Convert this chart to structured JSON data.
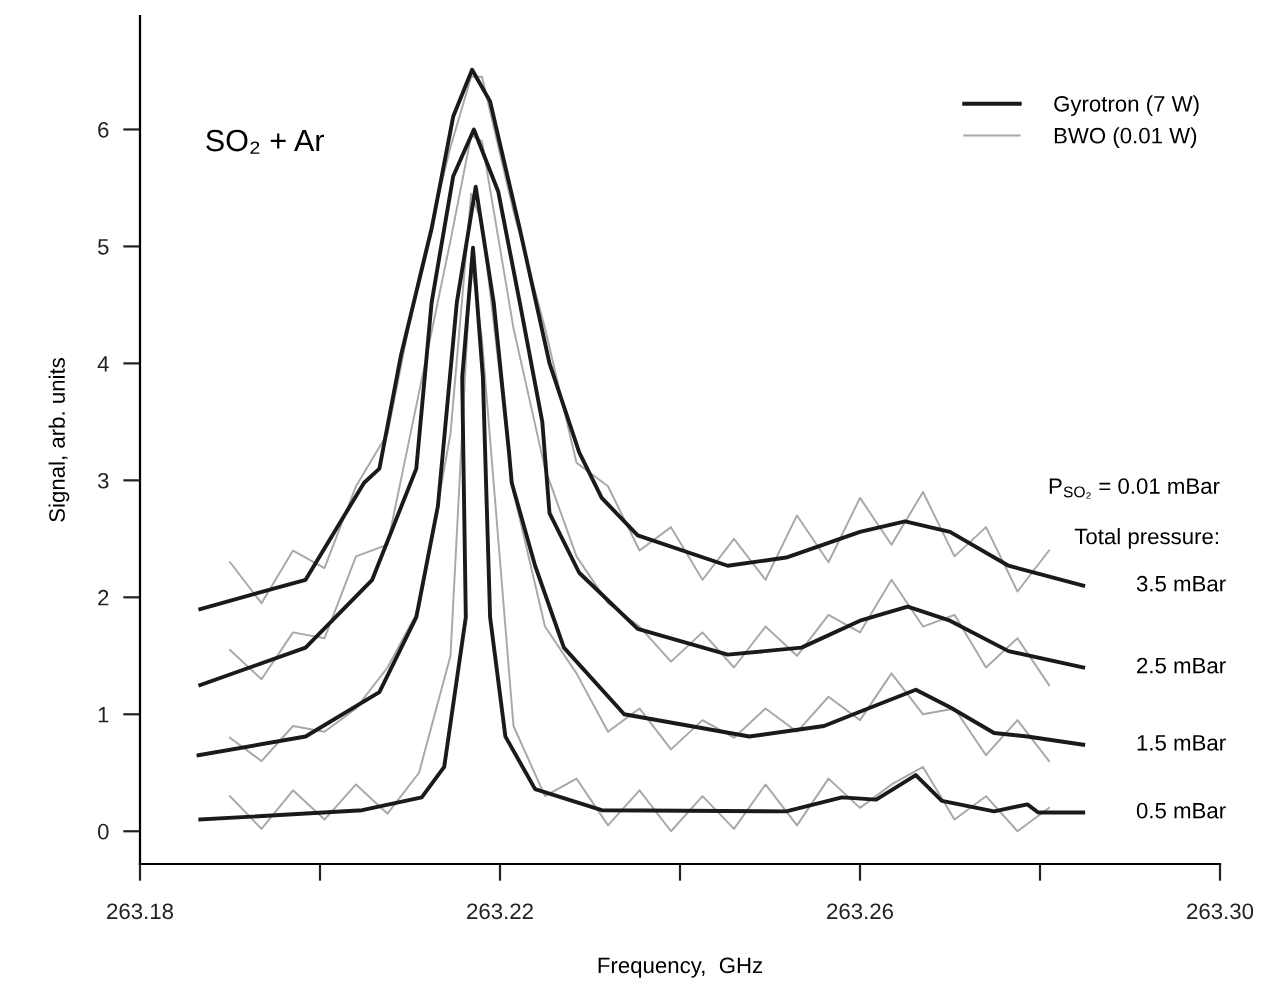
{
  "chart_data": {
    "type": "line",
    "xlabel": "Frequency,  GHz",
    "ylabel": "Signal, arb. units",
    "xlim": [
      263.18,
      263.3
    ],
    "ylim": [
      -0.28,
      6.97
    ],
    "xticks": [
      {
        "value": 263.18,
        "label": "263.18"
      },
      {
        "value": 263.2,
        "label": null
      },
      {
        "value": 263.22,
        "label": "263.22"
      },
      {
        "value": 263.24,
        "label": null
      },
      {
        "value": 263.26,
        "label": "263.26"
      },
      {
        "value": 263.28,
        "label": null
      },
      {
        "value": 263.3,
        "label": "263.30"
      }
    ],
    "yticks": [
      0,
      1,
      2,
      3,
      4,
      5,
      6
    ],
    "grid": false,
    "legend": "top right",
    "line_style": "solid",
    "marker": "none",
    "series": [
      {
        "name": "Gyrotron (7 W)",
        "color": "#1a1a1a",
        "x": [
          263.1867,
          263.1984,
          263.2049,
          263.2066,
          263.209,
          263.2124,
          263.2148,
          263.2169,
          263.2189,
          263.2222,
          263.2255,
          263.2288,
          263.2313,
          263.2353,
          263.2453,
          263.2518,
          263.26,
          263.265,
          263.27,
          263.2765,
          263.2848
        ],
        "values": [
          1.9,
          2.15,
          2.98,
          3.1,
          4.07,
          5.15,
          6.11,
          6.51,
          6.24,
          5.15,
          4.0,
          3.24,
          2.85,
          2.53,
          2.27,
          2.34,
          2.56,
          2.65,
          2.56,
          2.27,
          2.1
        ]
      },
      {
        "color": "#1a1a1a",
        "x": [
          263.1867,
          263.1984,
          263.2058,
          263.2107,
          263.2124,
          263.2148,
          263.2171,
          263.2198,
          263.2222,
          263.2247,
          263.2255,
          263.2288,
          263.2353,
          263.2453,
          263.2535,
          263.26,
          263.2653,
          263.27,
          263.2765,
          263.2848
        ],
        "values": [
          1.25,
          1.57,
          2.15,
          3.1,
          4.52,
          5.6,
          6.0,
          5.47,
          4.52,
          3.5,
          2.72,
          2.21,
          1.73,
          1.51,
          1.57,
          1.8,
          1.92,
          1.8,
          1.54,
          1.4
        ]
      },
      {
        "color": "#1a1a1a",
        "x": [
          263.1865,
          263.1984,
          263.2066,
          263.2107,
          263.2131,
          263.2152,
          263.2173,
          263.2193,
          263.221,
          263.2213,
          263.2239,
          263.2271,
          263.2338,
          263.2477,
          263.256,
          263.2609,
          263.2662,
          263.27,
          263.2749,
          263.2786,
          263.2848
        ],
        "values": [
          0.65,
          0.81,
          1.19,
          1.83,
          2.78,
          4.52,
          5.51,
          4.52,
          3.24,
          2.98,
          2.27,
          1.57,
          1.0,
          0.81,
          0.9,
          1.05,
          1.21,
          1.06,
          0.84,
          0.81,
          0.74
        ]
      },
      {
        "color": "#1a1a1a",
        "x": [
          263.1867,
          263.2047,
          263.2113,
          263.2138,
          263.2162,
          263.2158,
          263.217,
          263.2181,
          263.2189,
          263.2206,
          263.2239,
          263.2313,
          263.2518,
          263.258,
          263.2618,
          263.2662,
          263.2691,
          263.2749,
          263.2786,
          263.2798,
          263.2848
        ],
        "values": [
          0.1,
          0.18,
          0.29,
          0.55,
          1.83,
          3.88,
          4.99,
          3.88,
          1.83,
          0.81,
          0.36,
          0.18,
          0.17,
          0.29,
          0.27,
          0.48,
          0.26,
          0.17,
          0.23,
          0.16,
          0.16
        ]
      },
      {
        "name": "BWO (0.01 W)",
        "color": "#a8a8a8",
        "x": [
          263.19,
          263.1935,
          263.197,
          263.2005,
          263.204,
          263.2075,
          263.211,
          263.2145,
          263.2168,
          263.218,
          263.2215,
          263.225,
          263.2285,
          263.232,
          263.2355,
          263.239,
          263.2425,
          263.246,
          263.2495,
          263.253,
          263.2565,
          263.26,
          263.2635,
          263.267,
          263.2705,
          263.274,
          263.2775,
          263.281
        ],
        "values": [
          2.3,
          1.95,
          2.4,
          2.25,
          2.95,
          3.4,
          4.75,
          5.85,
          6.45,
          6.45,
          5.3,
          4.3,
          3.15,
          2.95,
          2.4,
          2.6,
          2.15,
          2.5,
          2.15,
          2.7,
          2.3,
          2.85,
          2.45,
          2.9,
          2.35,
          2.6,
          2.05,
          2.4
        ]
      },
      {
        "color": "#a8a8a8",
        "x": [
          263.19,
          263.1935,
          263.197,
          263.2005,
          263.204,
          263.2075,
          263.211,
          263.2145,
          263.2168,
          263.218,
          263.2215,
          263.225,
          263.2285,
          263.232,
          263.2355,
          263.239,
          263.2425,
          263.246,
          263.2495,
          263.253,
          263.2565,
          263.26,
          263.2635,
          263.267,
          263.2705,
          263.274,
          263.2775,
          263.281
        ],
        "values": [
          1.55,
          1.3,
          1.7,
          1.65,
          2.35,
          2.45,
          3.75,
          5.05,
          5.95,
          5.9,
          4.3,
          3.1,
          2.35,
          1.95,
          1.75,
          1.45,
          1.7,
          1.4,
          1.75,
          1.5,
          1.85,
          1.7,
          2.15,
          1.75,
          1.85,
          1.4,
          1.65,
          1.25
        ]
      },
      {
        "color": "#a8a8a8",
        "x": [
          263.19,
          263.1935,
          263.197,
          263.2005,
          263.204,
          263.2075,
          263.211,
          263.2145,
          263.2168,
          263.218,
          263.2215,
          263.225,
          263.2285,
          263.232,
          263.2355,
          263.239,
          263.2425,
          263.246,
          263.2495,
          263.253,
          263.2565,
          263.26,
          263.2635,
          263.267,
          263.2705,
          263.274,
          263.2775,
          263.281
        ],
        "values": [
          0.8,
          0.6,
          0.9,
          0.85,
          1.05,
          1.4,
          1.9,
          3.4,
          5.45,
          5.2,
          2.9,
          1.75,
          1.35,
          0.85,
          1.05,
          0.7,
          0.95,
          0.8,
          1.05,
          0.85,
          1.15,
          0.95,
          1.35,
          1.0,
          1.05,
          0.65,
          0.95,
          0.6
        ]
      },
      {
        "color": "#a8a8a8",
        "x": [
          263.19,
          263.1935,
          263.197,
          263.2005,
          263.204,
          263.2075,
          263.211,
          263.2145,
          263.2168,
          263.218,
          263.2215,
          263.225,
          263.2285,
          263.232,
          263.2355,
          263.239,
          263.2425,
          263.246,
          263.2495,
          263.253,
          263.2565,
          263.26,
          263.2635,
          263.267,
          263.2705,
          263.274,
          263.2775,
          263.281
        ],
        "values": [
          0.3,
          0.02,
          0.35,
          0.1,
          0.4,
          0.15,
          0.5,
          1.5,
          4.9,
          4.2,
          0.9,
          0.3,
          0.45,
          0.05,
          0.35,
          0.0,
          0.3,
          0.02,
          0.4,
          0.05,
          0.45,
          0.2,
          0.4,
          0.55,
          0.1,
          0.3,
          0.0,
          0.2
        ]
      }
    ],
    "annotations": [
      "SO₂ + Ar",
      "P$_{SO₂}$ = 0.01 mBar",
      "Total pressure:",
      "3.5 mBar",
      "2.5 mBar",
      "1.5 mBar",
      "0.5 mBar"
    ]
  }
}
